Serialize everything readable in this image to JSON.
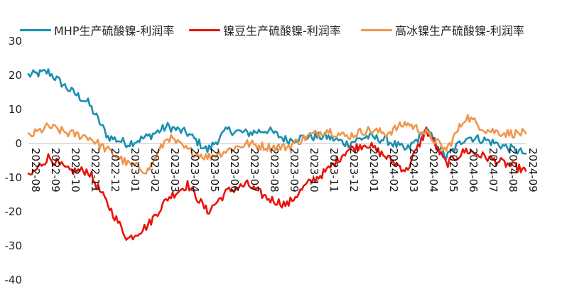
{
  "chart_data": {
    "type": "line",
    "title": "",
    "xlabel": "",
    "ylabel": "",
    "ylim": [
      -40,
      30
    ],
    "yticks": [
      -40,
      -30,
      -20,
      -10,
      0,
      10,
      20,
      30
    ],
    "ytick_labels": [
      "-40",
      "-30",
      "-20",
      "-10",
      "0",
      "10",
      "20",
      "30"
    ],
    "x_start": "2022-08",
    "x_end": "2024-09",
    "categories": [
      "2022-08",
      "2022-09",
      "2022-10",
      "2022-11",
      "2022-12",
      "2023-01",
      "2023-02",
      "2023-03",
      "2023-04",
      "2023-05",
      "2023-06",
      "2023-07",
      "2023-08",
      "2023-09",
      "2023-10",
      "2023-11",
      "2023-12",
      "2024-01",
      "2024-02",
      "2024-03",
      "2024-04",
      "2024-05",
      "2024-06",
      "2024-07",
      "2024-08",
      "2024-09"
    ],
    "legend_position": "top",
    "series": [
      {
        "name": "MHP生产硫酸镍-利润率",
        "color": "#1a8fb0",
        "values": [
          20,
          21,
          16,
          12,
          2,
          0,
          2,
          5,
          3,
          -2,
          4,
          3,
          4,
          1,
          2,
          2,
          0,
          2,
          1,
          -2,
          4,
          -4,
          2,
          1,
          -1,
          -3
        ]
      },
      {
        "name": "镍豆生产硫酸镍-利润率",
        "color": "#e8140c",
        "values": [
          -10,
          -4,
          -8,
          -8,
          -18,
          -28,
          -24,
          -16,
          -12,
          -20,
          -14,
          -12,
          -16,
          -18,
          -12,
          -8,
          -2,
          0,
          -4,
          -8,
          4,
          -6,
          -2,
          -4,
          -6,
          -8
        ]
      },
      {
        "name": "高冰镍生产硫酸镍-利润率",
        "color": "#f0964a",
        "values": [
          2,
          5,
          3,
          2,
          -2,
          -6,
          -8,
          2,
          -2,
          -4,
          -2,
          0,
          -1,
          -1,
          2,
          4,
          2,
          4,
          3,
          6,
          3,
          -2,
          8,
          4,
          3,
          3
        ]
      }
    ]
  }
}
